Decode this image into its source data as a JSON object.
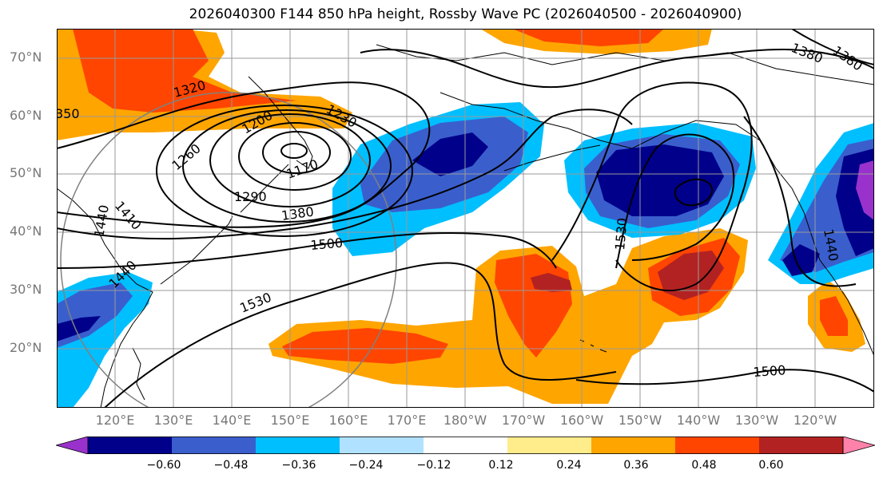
{
  "title": "2026040300 F144 850 hPa height, Rossby Wave PC (2026040500 - 2026040900)",
  "lat_labels": [
    "70°N",
    "60°N",
    "50°N",
    "40°N",
    "30°N",
    "20°N"
  ],
  "lon_labels": [
    "120°E",
    "130°E",
    "140°E",
    "150°E",
    "160°E",
    "170°E",
    "180°W",
    "170°W",
    "160°W",
    "150°W",
    "140°W",
    "130°W",
    "120°W"
  ],
  "contour_labels": [
    "1320",
    "350",
    "1200",
    "1230",
    "1260",
    "1170",
    "1290",
    "1380",
    "1500",
    "1440",
    "1410",
    "1440",
    "1530",
    "1530",
    "1500",
    "1380",
    "1380",
    "1440"
  ],
  "colorbar": {
    "ticks": [
      "−0.60",
      "−0.48",
      "−0.36",
      "−0.24",
      "−0.12",
      "0.12",
      "0.24",
      "0.36",
      "0.48",
      "0.60"
    ],
    "colors": [
      "#9932cc",
      "#00008b",
      "#3a5fcd",
      "#00bfff",
      "#b0e2ff",
      "#ffffff",
      "#ffec8b",
      "#ffa500",
      "#ff4500",
      "#b22222",
      "#ff82ab"
    ]
  },
  "colors": {
    "strong_negative": "#00008b",
    "negative": "#3a5fcd",
    "weak_negative": "#00bfff",
    "weak_positive": "#ffa500",
    "positive": "#ff4500",
    "strong_positive": "#b22222",
    "contour": "#000000",
    "grid": "#999999"
  }
}
